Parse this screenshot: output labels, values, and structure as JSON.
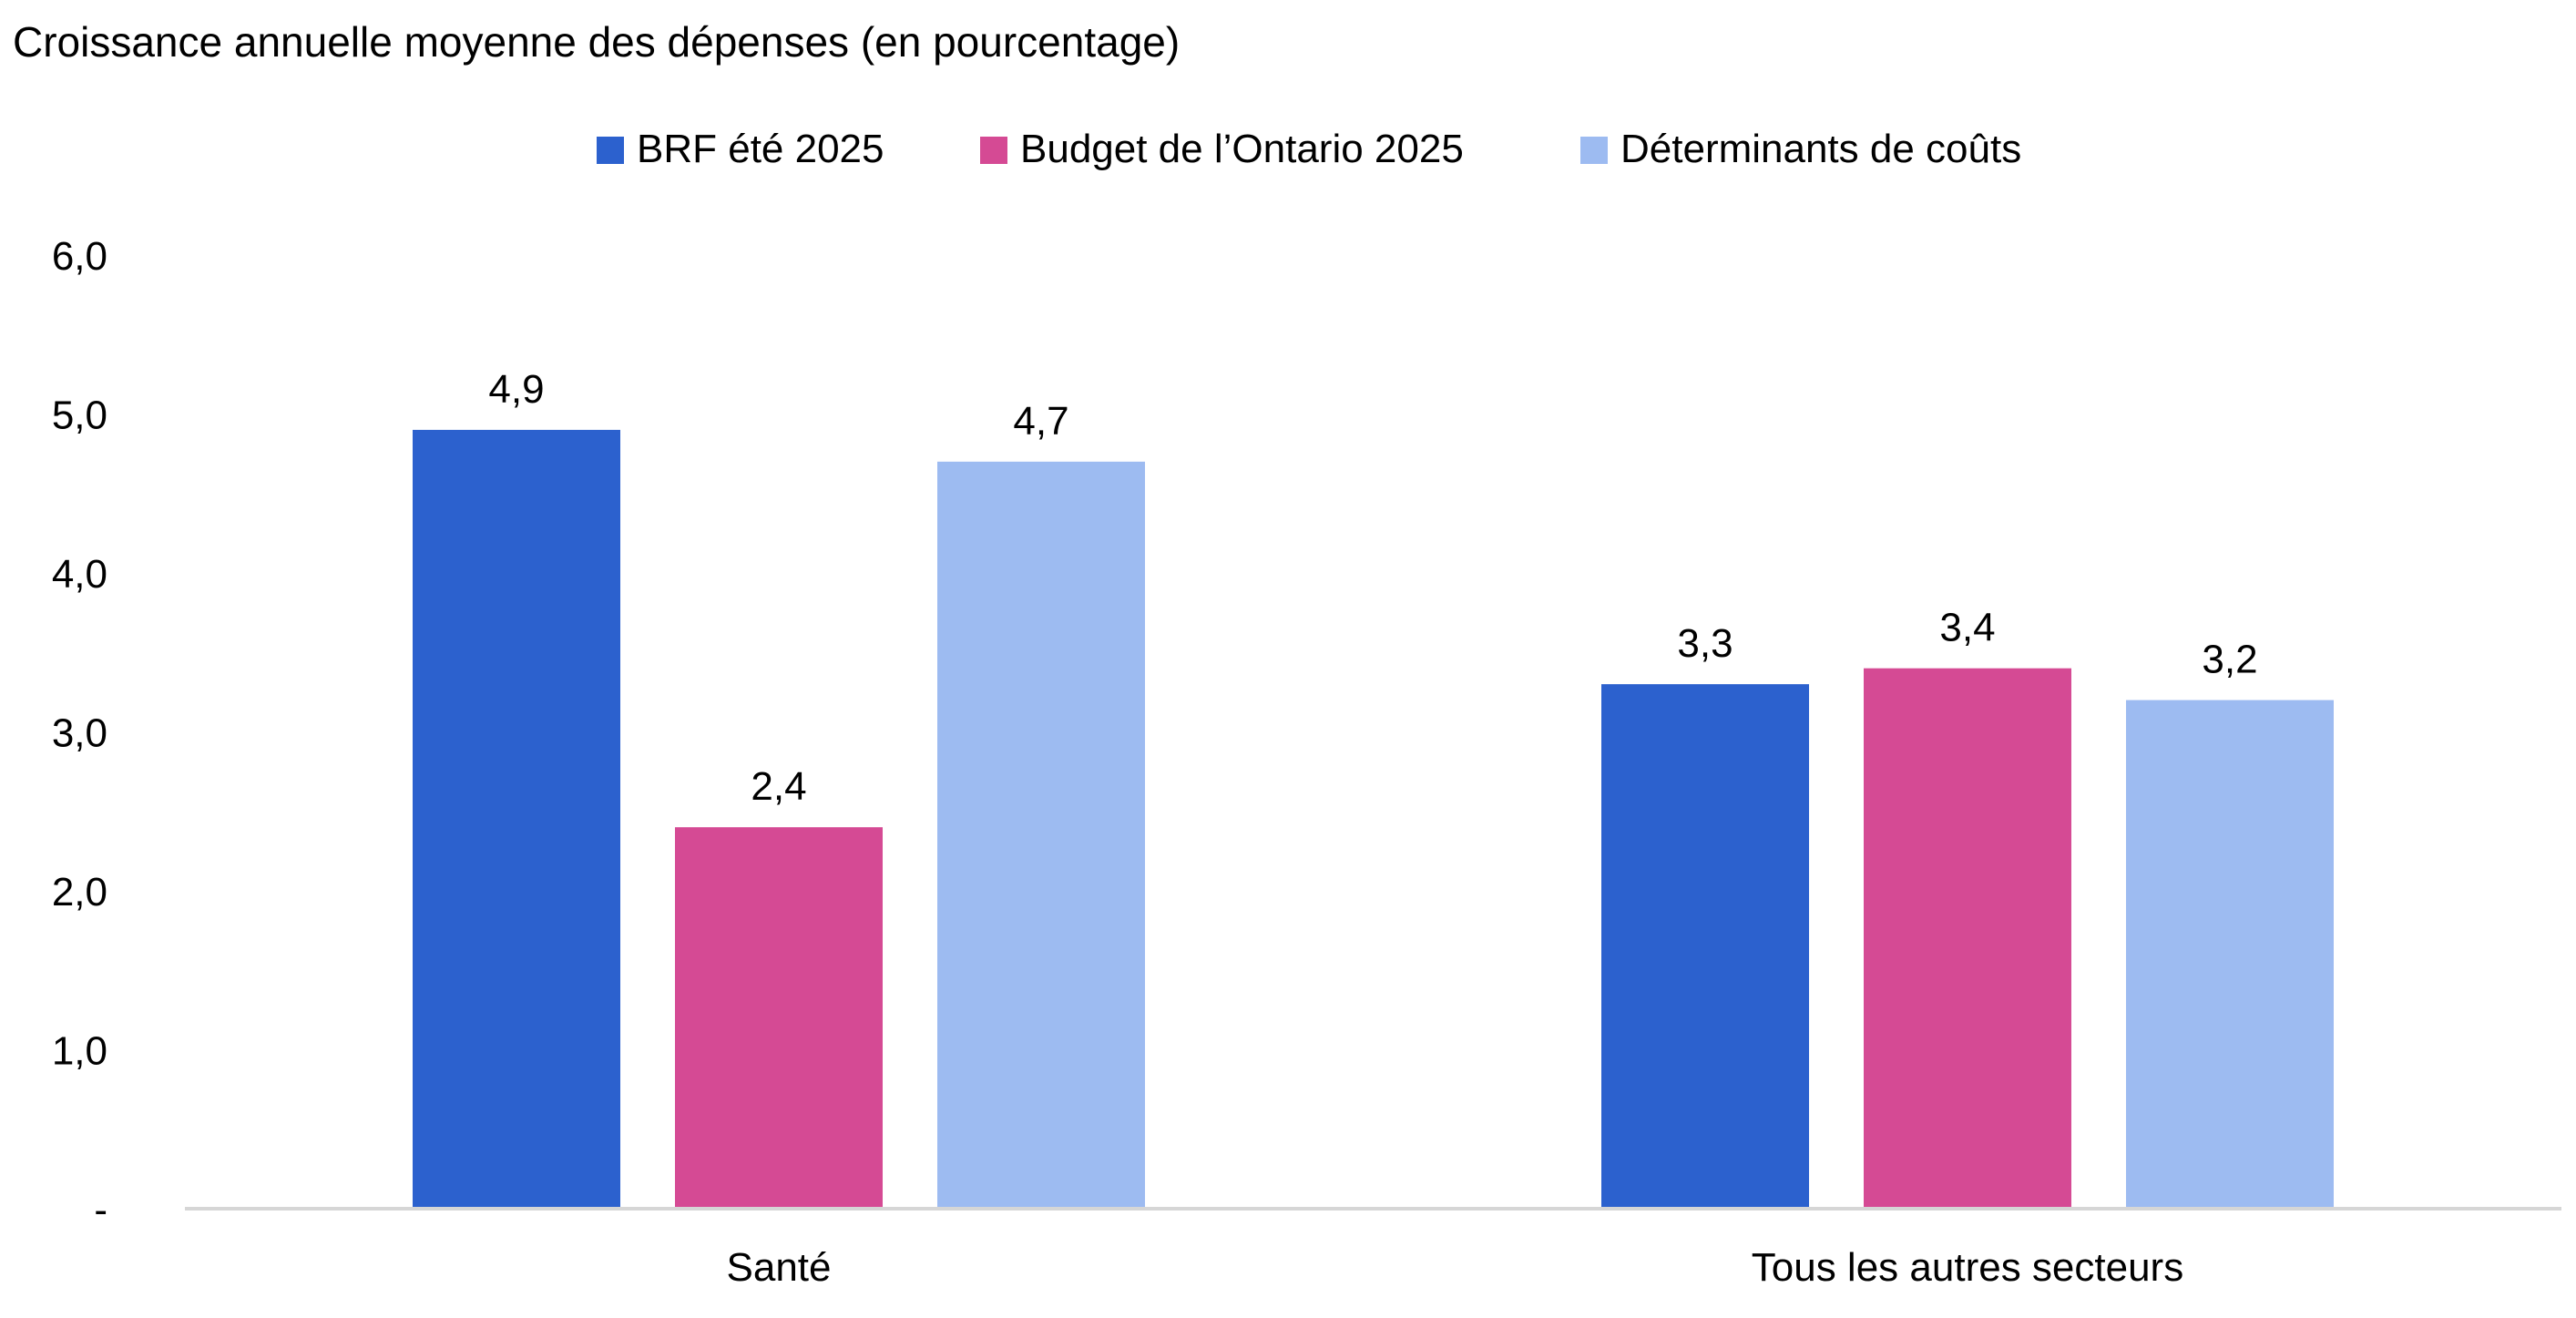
{
  "chart_data": {
    "type": "bar",
    "title": "Croissance annuelle moyenne des dépenses (en pourcentage)",
    "categories": [
      "Santé",
      "Tous les autres secteurs"
    ],
    "series": [
      {
        "name": "BRF été 2025",
        "values": [
          4.9,
          3.3
        ],
        "labels": [
          "4,9",
          "3,3"
        ],
        "color": "#2C61CE"
      },
      {
        "name": "Budget de l’Ontario 2025",
        "values": [
          2.4,
          3.4
        ],
        "labels": [
          "2,4",
          "3,4"
        ],
        "color": "#D54A94"
      },
      {
        "name": "Déterminants de coûts",
        "values": [
          4.7,
          3.2
        ],
        "labels": [
          "4,7",
          "3,2"
        ],
        "color": "#9DBBF1"
      }
    ],
    "ylim": [
      0,
      6
    ],
    "yticks": [
      0,
      1,
      2,
      3,
      4,
      5,
      6
    ],
    "ytick_labels": [
      "-",
      "1,0",
      "2,0",
      "3,0",
      "4,0",
      "5,0",
      "6,0"
    ],
    "grid": false,
    "legend_position": "top-center"
  }
}
